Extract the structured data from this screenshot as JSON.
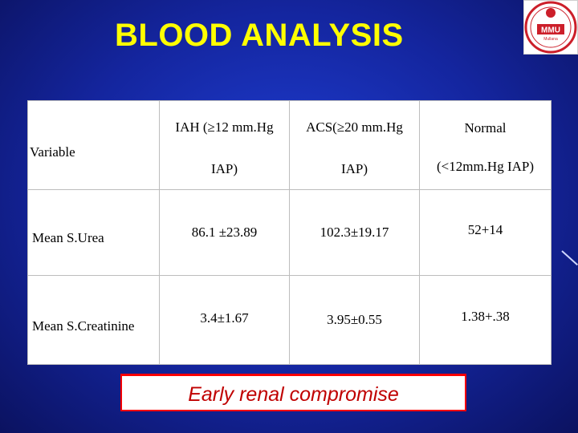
{
  "slide": {
    "title": "BLOOD ANALYSIS"
  },
  "logo": {
    "icon": "mmu-university-seal",
    "text": "MMU",
    "subtext": "Mullana",
    "color": "#cc1f2a"
  },
  "table": {
    "variable_header": "Variable",
    "columns": [
      {
        "top": "IAH (≥12 mm.Hg",
        "bottom": "IAP)"
      },
      {
        "top": "ACS(≥20 mm.Hg",
        "bottom": "IAP)"
      },
      {
        "top": "Normal",
        "bottom": "(<12mm.Hg IAP)"
      }
    ],
    "rows": [
      {
        "label": "Mean S.Urea",
        "values": [
          "86.1 ±23.89",
          "102.3±19.17",
          "52+14"
        ]
      },
      {
        "label": "Mean S.Creatinine",
        "values": [
          "3.4±1.67",
          "3.95±0.55",
          "1.38+.38"
        ]
      }
    ]
  },
  "banner": {
    "text": "Early renal compromise",
    "border_color": "#ff0000",
    "text_color": "#c00000"
  },
  "colors": {
    "title": "#ffff00",
    "background": "#1a34c8"
  }
}
